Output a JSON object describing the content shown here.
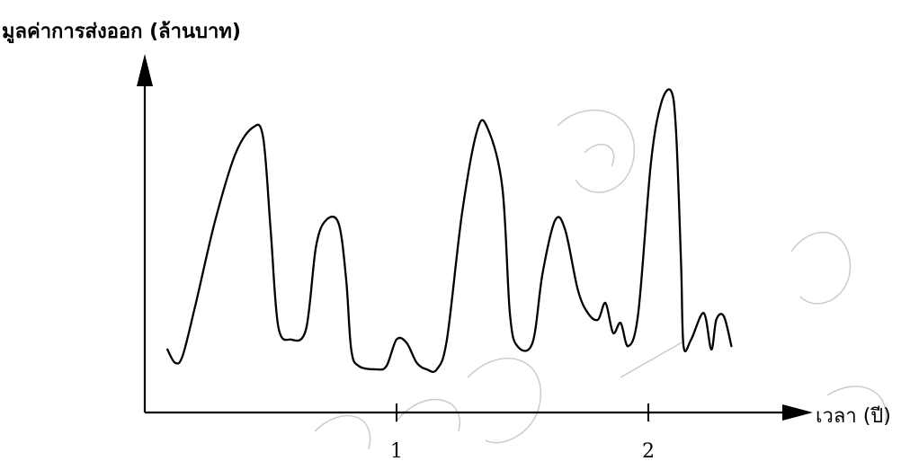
{
  "chart_data": {
    "type": "line",
    "title": "",
    "ylabel": "มูลค่าการส่งออก (ล้านบาท)",
    "xlabel": "เวลา (ปี)",
    "xlim": [
      0,
      2.6
    ],
    "ylim": [
      0,
      10
    ],
    "x_ticks": [
      {
        "value": 1,
        "label": "1"
      },
      {
        "value": 2,
        "label": "2"
      }
    ],
    "grid": false,
    "legend": "none",
    "line_color": "#000000",
    "watermark_color": "#c9c9c9",
    "series": [
      {
        "values": [
          [
            0.09,
            1.9
          ],
          [
            0.12,
            1.5
          ],
          [
            0.15,
            1.7
          ],
          [
            0.2,
            3.2
          ],
          [
            0.28,
            5.8
          ],
          [
            0.36,
            7.8
          ],
          [
            0.43,
            8.6
          ],
          [
            0.47,
            8.3
          ],
          [
            0.5,
            5.5
          ],
          [
            0.53,
            2.6
          ],
          [
            0.58,
            2.2
          ],
          [
            0.64,
            2.5
          ],
          [
            0.68,
            5.0
          ],
          [
            0.72,
            5.8
          ],
          [
            0.77,
            5.7
          ],
          [
            0.8,
            4.0
          ],
          [
            0.82,
            1.9
          ],
          [
            0.85,
            1.4
          ],
          [
            0.92,
            1.3
          ],
          [
            0.96,
            1.4
          ],
          [
            1.0,
            2.2
          ],
          [
            1.04,
            2.1
          ],
          [
            1.08,
            1.5
          ],
          [
            1.12,
            1.3
          ],
          [
            1.16,
            1.3
          ],
          [
            1.2,
            2.2
          ],
          [
            1.26,
            6.0
          ],
          [
            1.32,
            8.5
          ],
          [
            1.36,
            8.6
          ],
          [
            1.42,
            6.8
          ],
          [
            1.45,
            3.0
          ],
          [
            1.48,
            2.0
          ],
          [
            1.54,
            2.1
          ],
          [
            1.58,
            4.2
          ],
          [
            1.63,
            5.8
          ],
          [
            1.67,
            5.5
          ],
          [
            1.72,
            3.7
          ],
          [
            1.76,
            3.0
          ],
          [
            1.8,
            2.8
          ],
          [
            1.83,
            3.3
          ],
          [
            1.86,
            2.4
          ],
          [
            1.89,
            2.7
          ],
          [
            1.92,
            2.0
          ],
          [
            1.96,
            3.0
          ],
          [
            2.01,
            7.5
          ],
          [
            2.05,
            9.3
          ],
          [
            2.09,
            9.7
          ],
          [
            2.11,
            8.5
          ],
          [
            2.13,
            4.5
          ],
          [
            2.14,
            2.0
          ],
          [
            2.17,
            2.2
          ],
          [
            2.22,
            3.0
          ],
          [
            2.25,
            1.9
          ],
          [
            2.27,
            2.8
          ],
          [
            2.3,
            2.9
          ],
          [
            2.33,
            2.0
          ]
        ]
      }
    ]
  }
}
